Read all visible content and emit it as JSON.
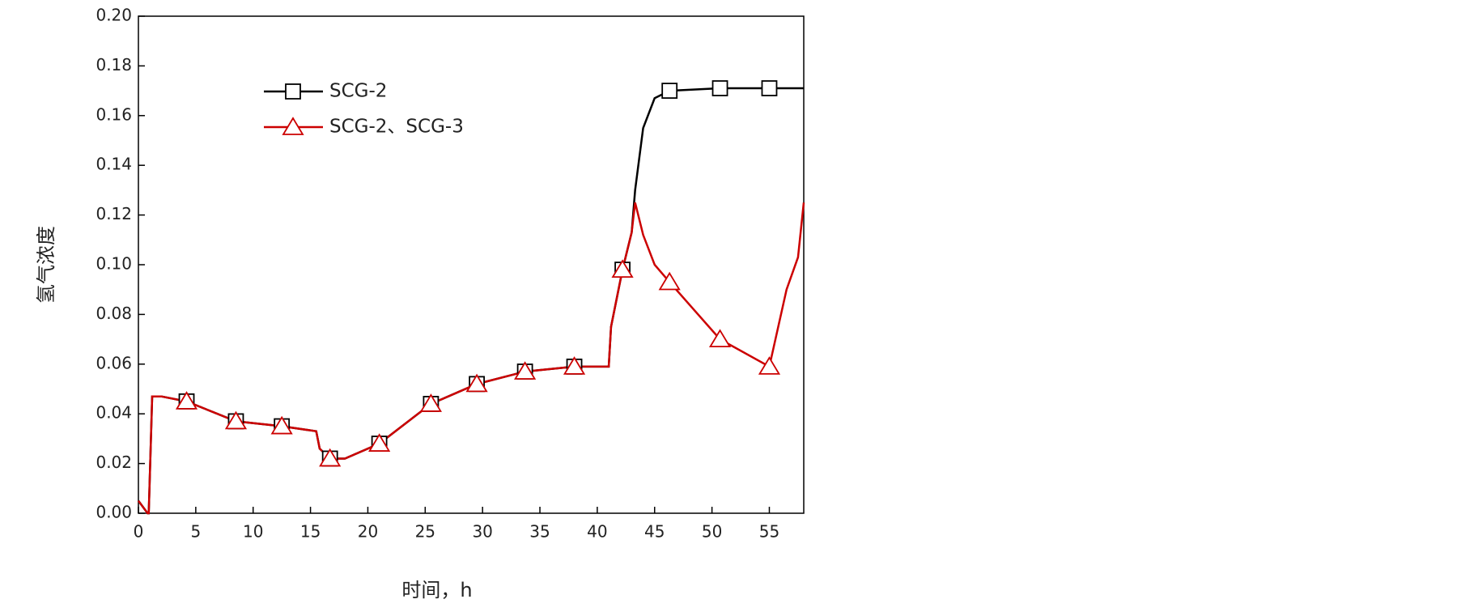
{
  "chart_data": {
    "type": "line",
    "xlabel": "时间，h",
    "ylabel": "氢气浓度",
    "x": [
      0,
      0.8,
      0.9,
      1.2,
      2,
      4.2,
      8.5,
      12.5,
      15.5,
      15.8,
      16.7,
      18,
      21,
      25.5,
      29.5,
      33.7,
      38,
      41,
      41.2,
      42.2,
      43,
      43.3,
      44,
      45,
      46.3,
      50.7,
      55,
      56.5,
      57.5,
      58
    ],
    "series": [
      {
        "name": "SCG-2",
        "color": "#000000",
        "marker": "square",
        "values": [
          0.005,
          0,
          0,
          0.047,
          0.047,
          0.045,
          0.037,
          0.035,
          0.033,
          0.026,
          0.022,
          0.022,
          0.028,
          0.044,
          0.052,
          0.057,
          0.059,
          0.059,
          0.075,
          0.098,
          0.113,
          0.13,
          0.155,
          0.167,
          0.17,
          0.171,
          0.171,
          0.171,
          0.171,
          0.171
        ],
        "markers": [
          5,
          6,
          7,
          10,
          12,
          13,
          14,
          15,
          16,
          19,
          24,
          25,
          26
        ]
      },
      {
        "name": "SCG-2、SCG-3",
        "color": "#cc0000",
        "marker": "triangle",
        "values": [
          0.005,
          0,
          0,
          0.047,
          0.047,
          0.045,
          0.037,
          0.035,
          0.033,
          0.026,
          0.022,
          0.022,
          0.028,
          0.044,
          0.052,
          0.057,
          0.059,
          0.059,
          0.075,
          0.098,
          0.113,
          0.125,
          0.112,
          0.1,
          0.093,
          0.07,
          0.059,
          0.09,
          0.103,
          0.125
        ],
        "markers": [
          5,
          6,
          7,
          10,
          12,
          13,
          14,
          15,
          16,
          19,
          24,
          25,
          26
        ]
      }
    ],
    "xlim": [
      0,
      58
    ],
    "xticks": [
      0,
      5,
      10,
      15,
      20,
      25,
      30,
      35,
      40,
      45,
      50,
      55
    ],
    "ylim": [
      0,
      0.2
    ],
    "yticks": [
      {
        "value": 0,
        "label": "0.00"
      },
      {
        "value": 0.02,
        "label": "0.02"
      },
      {
        "value": 0.04,
        "label": "0.04"
      },
      {
        "value": 0.06,
        "label": "0.06"
      },
      {
        "value": 0.08,
        "label": "0.08"
      },
      {
        "value": 0.1,
        "label": "0.10"
      },
      {
        "value": 0.12,
        "label": "0.12"
      },
      {
        "value": 0.14,
        "label": "0.14"
      },
      {
        "value": 0.16,
        "label": "0.16"
      },
      {
        "value": 0.18,
        "label": "0.18"
      },
      {
        "value": 0.2,
        "label": "0.20"
      }
    ],
    "grid": false,
    "legend": "upper left"
  }
}
